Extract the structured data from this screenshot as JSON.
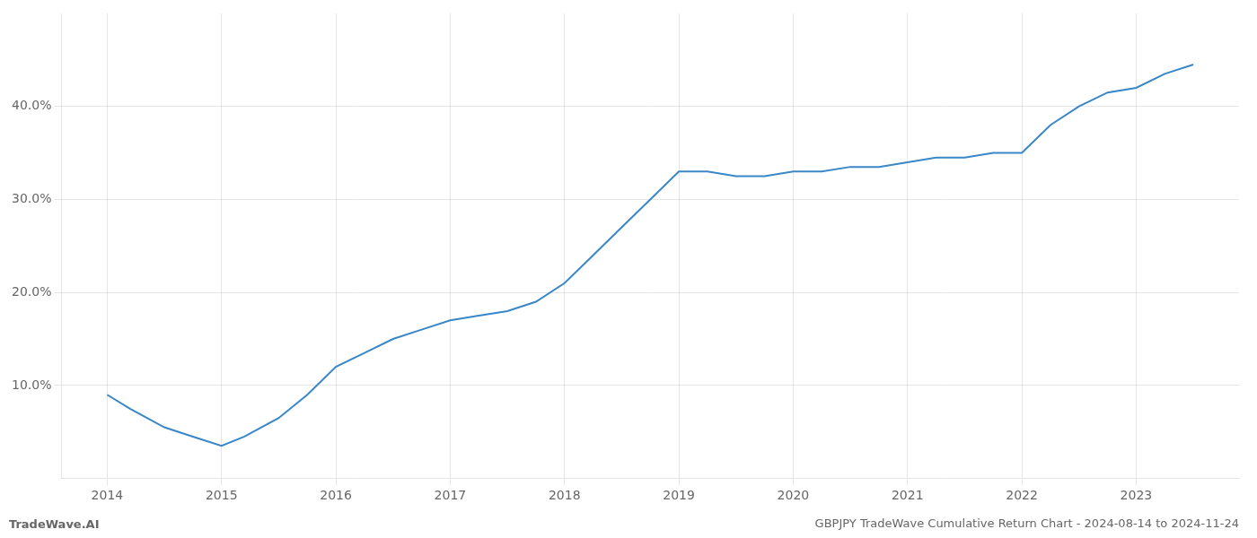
{
  "chart_data": {
    "type": "line",
    "title": "GBPJPY TradeWave Cumulative Return Chart - 2024-08-14 to 2024-11-24",
    "annotations": [
      "TradeWave.AI"
    ],
    "x": [
      2014.0,
      2014.2,
      2014.5,
      2014.75,
      2015.0,
      2015.2,
      2015.5,
      2015.75,
      2016.0,
      2016.25,
      2016.5,
      2016.75,
      2017.0,
      2017.25,
      2017.5,
      2017.75,
      2018.0,
      2018.25,
      2018.5,
      2018.75,
      2019.0,
      2019.25,
      2019.5,
      2019.75,
      2020.0,
      2020.25,
      2020.5,
      2020.75,
      2021.0,
      2021.25,
      2021.5,
      2021.75,
      2022.0,
      2022.25,
      2022.5,
      2022.75,
      2023.0,
      2023.25,
      2023.5
    ],
    "values": [
      9.0,
      7.5,
      5.5,
      4.5,
      3.5,
      4.5,
      6.5,
      9.0,
      12.0,
      13.5,
      15.0,
      16.0,
      17.0,
      17.5,
      18.0,
      19.0,
      21.0,
      24.0,
      27.0,
      30.0,
      33.0,
      33.0,
      32.5,
      32.5,
      33.0,
      33.0,
      33.5,
      33.5,
      34.0,
      34.5,
      34.5,
      35.0,
      35.0,
      38.0,
      40.0,
      41.5,
      42.0,
      43.5,
      44.5
    ],
    "color": "#3a87c8",
    "xlim": [
      2013.6,
      2023.9
    ],
    "ylim": [
      0,
      50
    ],
    "xticks": [
      2014,
      2015,
      2016,
      2017,
      2018,
      2019,
      2020,
      2021,
      2022,
      2023
    ],
    "yticks": [
      {
        "value": 10.0,
        "label": "10.0%"
      },
      {
        "value": 20.0,
        "label": "20.0%"
      },
      {
        "value": 30.0,
        "label": "30.0%"
      },
      {
        "value": 40.0,
        "label": "40.0%"
      }
    ],
    "grid": true
  }
}
